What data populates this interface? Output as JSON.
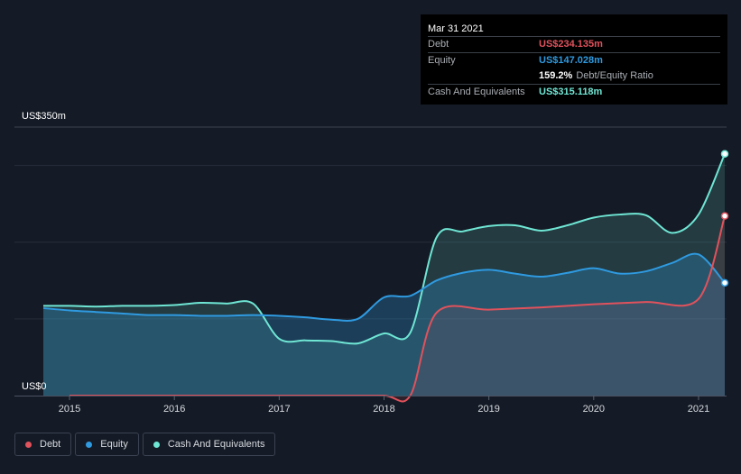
{
  "tooltip": {
    "date": "Mar 31 2021",
    "debt_label": "Debt",
    "debt_value": "US$234.135m",
    "equity_label": "Equity",
    "equity_value": "US$147.028m",
    "ratio_value": "159.2%",
    "ratio_label": "Debt/Equity Ratio",
    "cash_label": "Cash And Equivalents",
    "cash_value": "US$315.118m"
  },
  "legend": [
    {
      "label": "Debt",
      "color": "#e0525c"
    },
    {
      "label": "Equity",
      "color": "#2f9ae0"
    },
    {
      "label": "Cash And Equivalents",
      "color": "#6fe6d4"
    }
  ],
  "colors": {
    "background": "#151b26",
    "debt": "#e0525c",
    "equity": "#2f9ae0",
    "cash": "#6fe6d4"
  },
  "chart_data": {
    "type": "area",
    "y_top_label": "US$350m",
    "y_bottom_label": "US$0",
    "ylim": [
      0,
      350
    ],
    "xlim": [
      2014.75,
      2021.25
    ],
    "x_ticks": [
      {
        "value": 2015,
        "label": "2015"
      },
      {
        "value": 2016,
        "label": "2016"
      },
      {
        "value": 2017,
        "label": "2017"
      },
      {
        "value": 2018,
        "label": "2018"
      },
      {
        "value": 2019,
        "label": "2019"
      },
      {
        "value": 2020,
        "label": "2020"
      },
      {
        "value": 2021,
        "label": "2021"
      }
    ],
    "grid": true,
    "legend_position": "bottom-left",
    "series": [
      {
        "name": "Debt",
        "color": "#e0525c",
        "points": [
          [
            2015.0,
            0
          ],
          [
            2015.5,
            0
          ],
          [
            2016.0,
            0
          ],
          [
            2016.5,
            0
          ],
          [
            2017.0,
            0
          ],
          [
            2017.5,
            0
          ],
          [
            2018.0,
            0
          ],
          [
            2018.25,
            0
          ],
          [
            2018.5,
            108
          ],
          [
            2019.0,
            112
          ],
          [
            2019.5,
            115
          ],
          [
            2020.0,
            119
          ],
          [
            2020.5,
            122
          ],
          [
            2021.0,
            126
          ],
          [
            2021.25,
            234.1
          ]
        ]
      },
      {
        "name": "Equity",
        "color": "#2f9ae0",
        "points": [
          [
            2014.75,
            114
          ],
          [
            2015.0,
            111
          ],
          [
            2015.25,
            109
          ],
          [
            2015.5,
            107
          ],
          [
            2015.75,
            105
          ],
          [
            2016.0,
            105
          ],
          [
            2016.25,
            104
          ],
          [
            2016.5,
            104
          ],
          [
            2016.75,
            105
          ],
          [
            2017.0,
            104
          ],
          [
            2017.25,
            102
          ],
          [
            2017.5,
            99
          ],
          [
            2017.75,
            100
          ],
          [
            2018.0,
            128
          ],
          [
            2018.25,
            130
          ],
          [
            2018.5,
            150
          ],
          [
            2018.75,
            160
          ],
          [
            2019.0,
            164
          ],
          [
            2019.25,
            159
          ],
          [
            2019.5,
            155
          ],
          [
            2019.75,
            160
          ],
          [
            2020.0,
            166
          ],
          [
            2020.25,
            159
          ],
          [
            2020.5,
            162
          ],
          [
            2020.75,
            173
          ],
          [
            2021.0,
            184
          ],
          [
            2021.25,
            147.0
          ]
        ]
      },
      {
        "name": "Cash And Equivalents",
        "color": "#6fe6d4",
        "points": [
          [
            2014.75,
            117
          ],
          [
            2015.0,
            117
          ],
          [
            2015.25,
            116
          ],
          [
            2015.5,
            117
          ],
          [
            2015.75,
            117
          ],
          [
            2016.0,
            118
          ],
          [
            2016.25,
            121
          ],
          [
            2016.5,
            120
          ],
          [
            2016.75,
            120
          ],
          [
            2017.0,
            74
          ],
          [
            2017.25,
            72
          ],
          [
            2017.5,
            71
          ],
          [
            2017.75,
            68
          ],
          [
            2018.0,
            81
          ],
          [
            2018.25,
            82
          ],
          [
            2018.5,
            206
          ],
          [
            2018.75,
            214
          ],
          [
            2019.0,
            221
          ],
          [
            2019.25,
            222
          ],
          [
            2019.5,
            215
          ],
          [
            2019.75,
            222
          ],
          [
            2020.0,
            232
          ],
          [
            2020.25,
            236
          ],
          [
            2020.5,
            235
          ],
          [
            2020.75,
            212
          ],
          [
            2021.0,
            236
          ],
          [
            2021.25,
            315.1
          ]
        ]
      }
    ]
  }
}
